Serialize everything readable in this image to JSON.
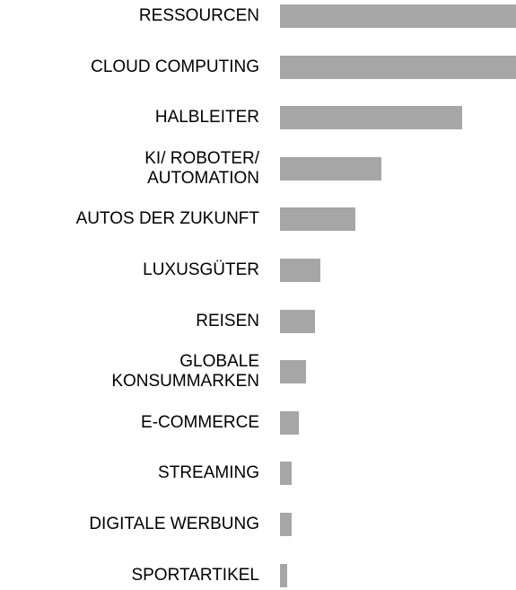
{
  "chart_data": {
    "type": "bar",
    "orientation": "horizontal",
    "categories": [
      "RESSOURCEN",
      "CLOUD COMPUTING",
      "HALBLEITER",
      "KI/ ROBOTER/\nAUTOMATION",
      "AUTOS DER ZUKUNFT",
      "LUXUSGÜTER",
      "REISEN",
      "GLOBALE\nKONSUMMARKEN",
      "E-COMMERCE",
      "STREAMING",
      "DIGITALE WERBUNG",
      "SPORTARTIKEL"
    ],
    "values": [
      100,
      100,
      77,
      43,
      32,
      17,
      15,
      11,
      8,
      5,
      5,
      3
    ],
    "color": "#a6a6a6",
    "xlim": [
      0,
      100
    ]
  }
}
